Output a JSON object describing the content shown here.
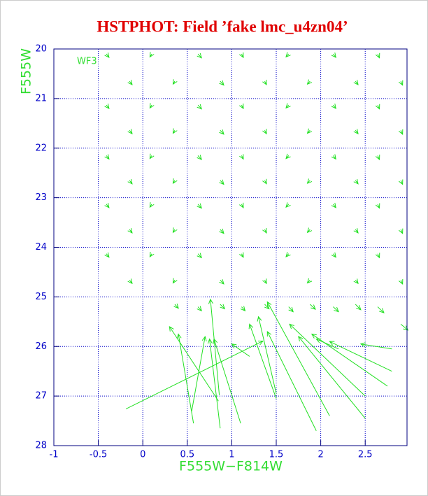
{
  "chart_data": {
    "type": "quiver",
    "title": "HSTPHOT: Field ’fake lmc_u4zn04’",
    "xlabel": "F555W−F814W",
    "ylabel": "F555W",
    "annotation": "WF3",
    "color": "#22e022",
    "grid": true,
    "xlim": [
      -1,
      2.97
    ],
    "ylim": [
      28,
      20
    ],
    "xticks": [
      -1,
      -0.5,
      0,
      0.5,
      1,
      1.5,
      2,
      2.5
    ],
    "yticks": [
      20,
      21,
      22,
      23,
      24,
      25,
      26,
      27,
      28
    ],
    "x": [
      -0.41,
      0.1,
      0.62,
      1.11,
      1.64,
      2.14,
      2.64,
      -0.15,
      0.36,
      0.87,
      1.37,
      1.88,
      2.39,
      2.9,
      -0.41,
      0.1,
      0.62,
      1.11,
      1.64,
      2.14,
      2.64,
      -0.15,
      0.36,
      0.87,
      1.37,
      1.88,
      2.39,
      2.9,
      -0.41,
      0.1,
      0.62,
      1.11,
      1.64,
      2.14,
      2.64,
      -0.15,
      0.36,
      0.87,
      1.37,
      1.88,
      2.39,
      2.9,
      -0.41,
      0.1,
      0.62,
      1.11,
      1.64,
      2.14,
      2.64,
      -0.15,
      0.36,
      0.87,
      1.37,
      1.88,
      2.39,
      2.9,
      -0.41,
      0.1,
      0.62,
      1.11,
      1.64,
      2.14,
      2.64,
      -0.15,
      0.36,
      0.87,
      1.37,
      1.88,
      2.39,
      2.9,
      0.36,
      0.62,
      0.87,
      1.11,
      1.37,
      1.64,
      1.88,
      2.14,
      2.39,
      2.64,
      2.9,
      0.85,
      0.57,
      0.87,
      0.55,
      -0.19,
      1.1,
      0.86,
      1.5,
      1.5,
      1.95,
      2.1,
      2.5,
      2.5,
      2.75,
      2.8,
      1.2,
      2.8,
      2.2
    ],
    "y": [
      20.1,
      20.1,
      20.1,
      20.1,
      20.1,
      20.1,
      20.1,
      20.65,
      20.65,
      20.65,
      20.65,
      20.65,
      20.65,
      20.65,
      21.13,
      21.13,
      21.13,
      21.13,
      21.13,
      21.13,
      21.13,
      21.64,
      21.64,
      21.64,
      21.64,
      21.64,
      21.64,
      21.64,
      22.15,
      22.15,
      22.15,
      22.15,
      22.15,
      22.15,
      22.15,
      22.65,
      22.65,
      22.65,
      22.65,
      22.65,
      22.65,
      22.65,
      23.13,
      23.13,
      23.13,
      23.13,
      23.13,
      23.13,
      23.13,
      23.64,
      23.64,
      23.64,
      23.64,
      23.64,
      23.64,
      23.64,
      24.13,
      24.13,
      24.13,
      24.13,
      24.13,
      24.13,
      24.13,
      24.66,
      24.66,
      24.66,
      24.66,
      24.66,
      24.66,
      24.66,
      25.15,
      25.2,
      25.15,
      25.2,
      25.15,
      25.2,
      25.15,
      25.2,
      25.15,
      25.2,
      25.55,
      27.1,
      27.55,
      27.65,
      27.3,
      27.26,
      27.55,
      26.98,
      27.05,
      26.95,
      27.7,
      27.4,
      27.0,
      27.45,
      26.8,
      26.5,
      26.2,
      26.05,
      26.05
    ],
    "dx": [
      0.03,
      -0.02,
      0.04,
      0.02,
      -0.03,
      0.03,
      0.02,
      0.03,
      -0.02,
      0.04,
      0.02,
      -0.03,
      0.03,
      0.02,
      0.03,
      -0.02,
      0.04,
      0.02,
      -0.03,
      0.03,
      0.02,
      0.03,
      -0.02,
      0.04,
      0.02,
      -0.03,
      0.03,
      0.02,
      0.03,
      -0.02,
      0.04,
      0.02,
      -0.03,
      0.03,
      0.02,
      0.03,
      -0.02,
      0.04,
      0.02,
      -0.03,
      0.03,
      0.02,
      0.03,
      -0.02,
      0.04,
      0.02,
      -0.03,
      0.03,
      0.02,
      0.03,
      -0.02,
      0.04,
      0.02,
      -0.03,
      0.03,
      0.02,
      0.03,
      -0.02,
      0.04,
      0.02,
      -0.03,
      0.03,
      0.02,
      0.03,
      -0.02,
      0.04,
      0.02,
      -0.03,
      0.03,
      0.02,
      0.04,
      0.04,
      0.05,
      0.04,
      0.05,
      0.05,
      0.06,
      0.06,
      0.06,
      0.07,
      0.08,
      -0.55,
      -0.17,
      -0.12,
      0.15,
      1.54,
      -0.3,
      -0.1,
      -0.3,
      -0.2,
      -0.55,
      -0.7,
      -0.85,
      -0.75,
      -0.85,
      -0.7,
      -0.2,
      -0.35,
      -0.25
    ],
    "dy": [
      0.07,
      0.06,
      0.08,
      0.07,
      0.06,
      0.07,
      0.08,
      0.07,
      0.06,
      0.08,
      0.07,
      0.06,
      0.07,
      0.08,
      0.07,
      0.06,
      0.08,
      0.07,
      0.06,
      0.07,
      0.08,
      0.07,
      0.06,
      0.08,
      0.07,
      0.06,
      0.07,
      0.08,
      0.07,
      0.06,
      0.08,
      0.07,
      0.06,
      0.07,
      0.08,
      0.07,
      0.06,
      0.08,
      0.07,
      0.06,
      0.07,
      0.08,
      0.07,
      0.06,
      0.08,
      0.07,
      0.06,
      0.07,
      0.08,
      0.07,
      0.06,
      0.08,
      0.07,
      0.06,
      0.07,
      0.08,
      0.07,
      0.06,
      0.08,
      0.07,
      0.06,
      0.07,
      0.08,
      0.07,
      0.06,
      0.08,
      0.07,
      0.06,
      0.07,
      0.08,
      0.08,
      0.08,
      0.09,
      0.08,
      0.09,
      0.1,
      0.1,
      0.1,
      0.11,
      0.12,
      0.12,
      -1.5,
      -1.8,
      -1.8,
      -1.5,
      -1.37,
      -1.7,
      -1.93,
      -1.5,
      -1.55,
      -2.0,
      -2.3,
      -1.45,
      -1.65,
      -1.05,
      -0.6,
      -0.25,
      -0.1,
      -0.2
    ]
  }
}
